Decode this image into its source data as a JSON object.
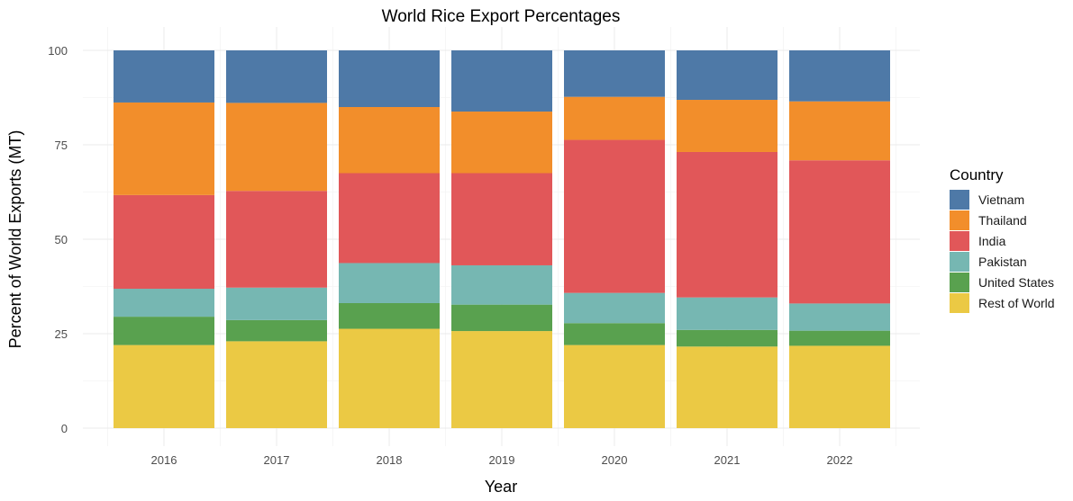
{
  "chart_data": {
    "type": "bar",
    "stacked": true,
    "title": "World Rice Export Percentages",
    "xlabel": "Year",
    "ylabel": "Percent of World Exports (MT)",
    "categories": [
      "2016",
      "2017",
      "2018",
      "2019",
      "2020",
      "2021",
      "2022"
    ],
    "ylim": [
      0,
      100
    ],
    "yticks": [
      0,
      25,
      50,
      75,
      100
    ],
    "grid": true,
    "legend": {
      "title": "Country",
      "position": "right"
    },
    "series": [
      {
        "name": "Rest of World",
        "color": "#EBC944",
        "values": [
          22.0,
          23.0,
          26.3,
          25.7,
          22.0,
          21.6,
          21.8
        ]
      },
      {
        "name": "United States",
        "color": "#59A14F",
        "values": [
          7.5,
          5.6,
          6.8,
          7.0,
          5.8,
          4.4,
          4.0
        ]
      },
      {
        "name": "Pakistan",
        "color": "#76B7B2",
        "values": [
          7.4,
          8.6,
          10.6,
          10.4,
          8.0,
          8.6,
          7.2
        ]
      },
      {
        "name": "India",
        "color": "#E15759",
        "values": [
          24.8,
          25.6,
          23.8,
          24.4,
          40.5,
          38.5,
          37.9
        ]
      },
      {
        "name": "Thailand",
        "color": "#F28E2B",
        "values": [
          24.5,
          23.3,
          17.5,
          16.3,
          11.4,
          13.8,
          15.6
        ]
      },
      {
        "name": "Vietnam",
        "color": "#4E79A7",
        "values": [
          13.8,
          13.9,
          15.0,
          16.2,
          12.3,
          13.1,
          13.5
        ]
      }
    ]
  }
}
